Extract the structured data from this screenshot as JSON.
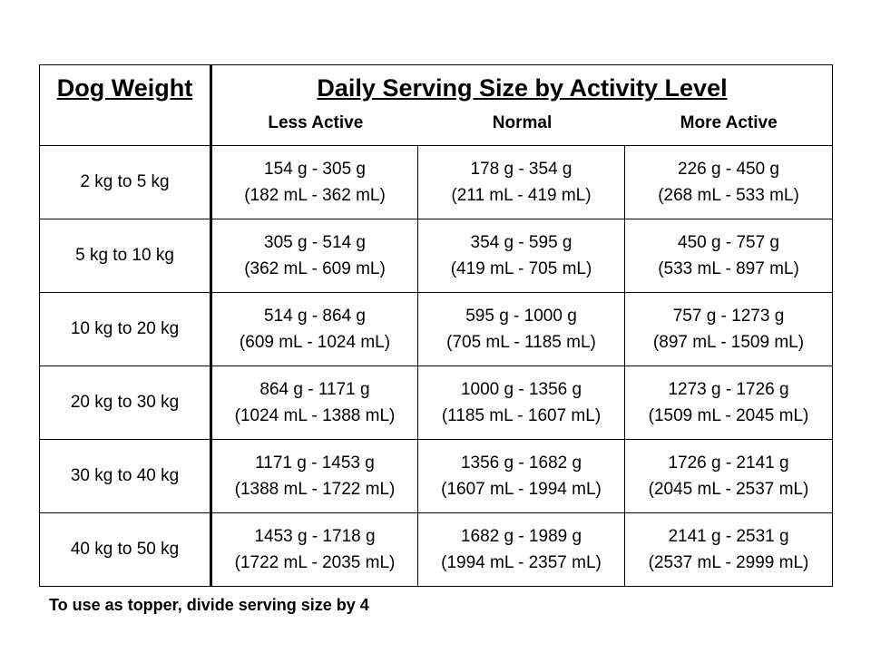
{
  "header": {
    "weight_label": "Dog Weight",
    "title": "Daily Serving Size by Activity Level",
    "activity_levels": [
      "Less Active",
      "Normal",
      "More Active"
    ]
  },
  "rows": [
    {
      "weight": "2 kg to 5 kg",
      "servings": [
        {
          "grams": "154 g - 305 g",
          "ml": "(182 mL - 362 mL)"
        },
        {
          "grams": "178 g - 354 g",
          "ml": "(211 mL - 419 mL)"
        },
        {
          "grams": "226 g - 450 g",
          "ml": "(268 mL - 533 mL)"
        }
      ]
    },
    {
      "weight": "5 kg to 10 kg",
      "servings": [
        {
          "grams": "305 g - 514 g",
          "ml": "(362 mL - 609 mL)"
        },
        {
          "grams": "354 g - 595 g",
          "ml": "(419 mL - 705 mL)"
        },
        {
          "grams": "450 g - 757 g",
          "ml": "(533 mL - 897 mL)"
        }
      ]
    },
    {
      "weight": "10 kg to 20 kg",
      "servings": [
        {
          "grams": "514 g - 864 g",
          "ml": "(609 mL - 1024 mL)"
        },
        {
          "grams": "595 g - 1000 g",
          "ml": "(705 mL - 1185 mL)"
        },
        {
          "grams": "757 g - 1273 g",
          "ml": "(897 mL - 1509 mL)"
        }
      ]
    },
    {
      "weight": "20 kg to 30 kg",
      "servings": [
        {
          "grams": "864 g - 1171 g",
          "ml": "(1024 mL - 1388 mL)"
        },
        {
          "grams": "1000 g - 1356 g",
          "ml": "(1185 mL - 1607 mL)"
        },
        {
          "grams": "1273 g - 1726 g",
          "ml": "(1509 mL - 2045 mL)"
        }
      ]
    },
    {
      "weight": "30 kg to 40 kg",
      "servings": [
        {
          "grams": "1171 g - 1453 g",
          "ml": "(1388 mL - 1722 mL)"
        },
        {
          "grams": "1356 g - 1682 g",
          "ml": "(1607 mL - 1994 mL)"
        },
        {
          "grams": "1726 g - 2141 g",
          "ml": "(2045 mL - 2537 mL)"
        }
      ]
    },
    {
      "weight": "40 kg to 50 kg",
      "servings": [
        {
          "grams": "1453 g - 1718 g",
          "ml": "(1722 mL - 2035 mL)"
        },
        {
          "grams": "1682 g - 1989 g",
          "ml": "(1994 mL - 2357 mL)"
        },
        {
          "grams": "2141 g - 2531 g",
          "ml": "(2537 mL - 2999 mL)"
        }
      ]
    }
  ],
  "footnote": "To use as topper, divide serving size by 4"
}
